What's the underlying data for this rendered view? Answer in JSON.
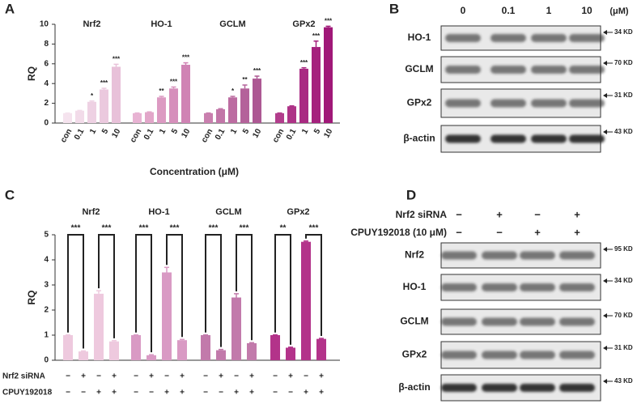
{
  "chart_data": [
    {
      "type": "bar",
      "panel": "A",
      "ylabel": "RQ",
      "xlabel": "Concentration (μM)",
      "ylim": [
        0,
        10
      ],
      "yticks": [
        0,
        2,
        4,
        6,
        8,
        10
      ],
      "groups": [
        {
          "name": "Nrf2",
          "categories": [
            "con",
            "0.1",
            "1",
            "5",
            "10"
          ],
          "values": [
            1,
            1.25,
            2.15,
            3.4,
            5.7
          ],
          "errors": [
            0.02,
            0.03,
            0.08,
            0.12,
            0.25
          ],
          "annotations": [
            null,
            null,
            "*",
            "***",
            "***"
          ],
          "colors": [
            "#f5e3ee",
            "#f2dbe9",
            "#eed1e3",
            "#ebc9de",
            "#e8c1d9"
          ]
        },
        {
          "name": "HO-1",
          "categories": [
            "con",
            "0.1",
            "1",
            "5",
            "10"
          ],
          "values": [
            1,
            1.1,
            2.6,
            3.5,
            5.9
          ],
          "errors": [
            0.02,
            0.03,
            0.1,
            0.15,
            0.2
          ],
          "annotations": [
            null,
            null,
            "**",
            "***",
            "***"
          ],
          "colors": [
            "#e8b3d3",
            "#e2a6c9",
            "#dc9ac2",
            "#d68fbb",
            "#d083b4"
          ]
        },
        {
          "name": "GCLM",
          "categories": [
            "con",
            "0.1",
            "1",
            "5",
            "10"
          ],
          "values": [
            1,
            1.4,
            2.6,
            3.5,
            4.5
          ],
          "errors": [
            0.02,
            0.05,
            0.1,
            0.35,
            0.25
          ],
          "annotations": [
            null,
            null,
            "*",
            "**",
            "***"
          ],
          "colors": [
            "#c97fae",
            "#c276a8",
            "#bc6ca1",
            "#b4629a",
            "#ad5893"
          ]
        },
        {
          "name": "GPx2",
          "categories": [
            "con",
            "0.1",
            "1",
            "5",
            "10"
          ],
          "values": [
            1,
            1.7,
            5.5,
            7.7,
            9.7
          ],
          "errors": [
            0.02,
            0.04,
            0.1,
            0.6,
            0.1
          ],
          "annotations": [
            null,
            null,
            "***",
            "***",
            "***"
          ],
          "colors": [
            "#b23d8c",
            "#ae3387",
            "#a92a82",
            "#a5217d",
            "#a01878"
          ]
        }
      ]
    },
    {
      "type": "bar",
      "panel": "C",
      "ylabel": "RQ",
      "ylim": [
        0,
        5
      ],
      "yticks": [
        0,
        1,
        2,
        3,
        4,
        5
      ],
      "conditions": [
        {
          "label": "Nrf2 siRNA",
          "signs": [
            "−",
            "+",
            "−",
            "+"
          ]
        },
        {
          "label": "CPUY192018",
          "signs": [
            "−",
            "−",
            "+",
            "+"
          ]
        }
      ],
      "groups": [
        {
          "name": "Nrf2",
          "values": [
            1,
            0.35,
            2.65,
            0.75
          ],
          "errors": [
            0.01,
            0.02,
            0.12,
            0.03
          ],
          "comparisons": [
            "***",
            "***"
          ],
          "color": "#eec9de"
        },
        {
          "name": "HO-1",
          "values": [
            1,
            0.2,
            3.5,
            0.8
          ],
          "errors": [
            0.01,
            0.02,
            0.2,
            0.03
          ],
          "comparisons": [
            "***",
            "***"
          ],
          "color": "#d99ac4"
        },
        {
          "name": "GCLM",
          "values": [
            1,
            0.4,
            2.5,
            0.68
          ],
          "errors": [
            0.01,
            0.03,
            0.15,
            0.02
          ],
          "comparisons": [
            "***",
            "***"
          ],
          "color": "#c27aab"
        },
        {
          "name": "GPx2",
          "values": [
            1,
            0.5,
            4.72,
            0.85
          ],
          "errors": [
            0.01,
            0.02,
            0.03,
            0.02
          ],
          "comparisons": [
            "**",
            "***"
          ],
          "color": "#b3338a"
        }
      ]
    }
  ],
  "blot_b": {
    "panel": "B",
    "lanes": [
      "0",
      "0.1",
      "1",
      "10"
    ],
    "unit": "(μM)",
    "rows": [
      {
        "name": "HO-1",
        "size": "34 KD"
      },
      {
        "name": "GCLM",
        "size": "70 KD"
      },
      {
        "name": "GPx2",
        "size": "31 KD"
      },
      {
        "name": "β-actin",
        "size": "43 KD"
      }
    ]
  },
  "blot_d": {
    "panel": "D",
    "conditions": [
      {
        "label": "Nrf2 siRNA",
        "signs": [
          "−",
          "+",
          "−",
          "+"
        ]
      },
      {
        "label": "CPUY192018 (10 μM)",
        "signs": [
          "−",
          "−",
          "+",
          "+"
        ]
      }
    ],
    "rows": [
      {
        "name": "Nrf2",
        "size": "95 KD"
      },
      {
        "name": "HO-1",
        "size": "34 KD"
      },
      {
        "name": "GCLM",
        "size": "70 KD"
      },
      {
        "name": "GPx2",
        "size": "31 KD"
      },
      {
        "name": "β-actin",
        "size": "43 KD"
      }
    ]
  }
}
